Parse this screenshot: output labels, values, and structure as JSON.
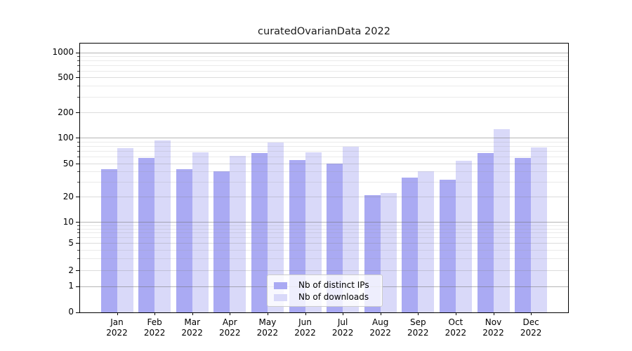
{
  "figure": {
    "title": "curatedOvarianData 2022"
  },
  "chart_data": {
    "type": "bar",
    "title": "curatedOvarianData 2022",
    "categories": [
      "Jan",
      "Feb",
      "Mar",
      "Apr",
      "May",
      "Jun",
      "Jul",
      "Aug",
      "Sep",
      "Oct",
      "Nov",
      "Dec"
    ],
    "category_year": "2022",
    "series": [
      {
        "name": "Nb of distinct IPs",
        "color": "#aaaaf3",
        "values": [
          43,
          58,
          43,
          40,
          66,
          55,
          50,
          21,
          34,
          32,
          66,
          58
        ]
      },
      {
        "name": "Nb of downloads",
        "color": "#d9d9f9",
        "values": [
          75,
          93,
          67,
          61,
          87,
          68,
          78,
          22,
          40,
          54,
          125,
          77
        ]
      }
    ],
    "xlabel": "",
    "ylabel": "",
    "y_axis": {
      "ticks": [
        0,
        1,
        2,
        5,
        10,
        20,
        50,
        100,
        200,
        500,
        1000
      ],
      "minor_ticks": [
        3,
        4,
        6,
        7,
        8,
        9,
        30,
        40,
        60,
        70,
        80,
        90,
        300,
        400,
        600,
        700,
        800,
        900
      ],
      "range": [
        0,
        1300
      ],
      "scale": "symlog"
    },
    "grid": true,
    "legend_position": "lower center inside plot",
    "bar_style": "paired, semi-transparent, gridlines visible through bars"
  },
  "legend": {
    "items": [
      {
        "label": "Nb of distinct IPs",
        "color": "#aaaaf3"
      },
      {
        "label": "Nb of downloads",
        "color": "#d9d9f9"
      }
    ]
  },
  "colors": {
    "background": "#ffffff",
    "spine": "#000000",
    "grid_decade": "#b7b7b7",
    "grid_major": "#dcdcdc",
    "grid_minor": "#e9e9e9",
    "text": "#000000"
  }
}
